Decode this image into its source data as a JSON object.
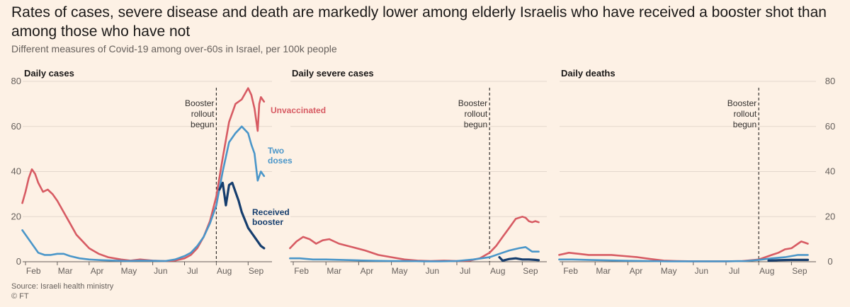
{
  "title": "Rates of cases, severe disease and death are markedly lower among elderly Israelis who have received a booster shot than among those who have not",
  "subtitle": "Different measures of Covid-19 among over-60s in Israel, per 100k people",
  "source": "Source: Israeli health ministry",
  "credit": "© FT",
  "colors": {
    "unvaccinated": "#d75b63",
    "two_doses": "#4a96c9",
    "booster": "#163e6e",
    "grid": "#e3d8cd",
    "text": "#33302e"
  },
  "annotation": [
    "Booster",
    "rollout",
    "begun"
  ],
  "chart_data": [
    {
      "type": "line",
      "title": "Daily cases",
      "ylim": [
        0,
        80
      ],
      "y_ticks": [
        "0",
        "20",
        "40",
        "60",
        "80"
      ],
      "x_ticks": [
        "Feb",
        "Mar",
        "Apr",
        "May",
        "Jun",
        "Jul",
        "Aug",
        "Sep"
      ],
      "xlim": [
        0,
        7.75
      ],
      "booster_start": 6.0,
      "grid": true,
      "series": [
        {
          "key": "unvaccinated",
          "name": "Unvaccinated",
          "x": [
            -0.1,
            0.0,
            0.1,
            0.2,
            0.3,
            0.4,
            0.55,
            0.7,
            0.85,
            1.0,
            1.2,
            1.4,
            1.6,
            1.8,
            2.0,
            2.3,
            2.6,
            3.0,
            3.3,
            3.6,
            4.0,
            4.4,
            4.7,
            5.0,
            5.2,
            5.4,
            5.6,
            5.8,
            6.0,
            6.2,
            6.4,
            6.6,
            6.8,
            7.0,
            7.1,
            7.2,
            7.3,
            7.35,
            7.4,
            7.5
          ],
          "y": [
            26,
            31,
            37,
            41,
            39,
            35,
            31,
            32,
            30,
            27,
            22,
            17,
            12,
            9,
            6,
            3.5,
            2,
            1,
            0.5,
            1,
            0.5,
            0.3,
            0.5,
            1.5,
            3,
            6,
            11,
            18,
            29,
            46,
            62,
            70,
            72,
            77,
            74,
            68,
            58,
            70,
            73,
            71
          ]
        },
        {
          "key": "two_doses",
          "name": "Two doses",
          "x": [
            -0.1,
            0.0,
            0.2,
            0.4,
            0.6,
            0.8,
            1.0,
            1.2,
            1.4,
            1.7,
            2.0,
            2.4,
            2.8,
            3.2,
            3.6,
            4.0,
            4.4,
            4.7,
            5.0,
            5.2,
            5.4,
            5.6,
            5.8,
            6.0,
            6.2,
            6.4,
            6.6,
            6.8,
            7.0,
            7.1,
            7.2,
            7.3,
            7.4,
            7.5
          ],
          "y": [
            14,
            12,
            8,
            4,
            3,
            3,
            3.5,
            3.5,
            2.5,
            1.5,
            1.0,
            0.7,
            0.5,
            0.3,
            0.5,
            0.4,
            0.3,
            1,
            2.5,
            4,
            7,
            11,
            17,
            25,
            40,
            53,
            57,
            60,
            57,
            52,
            48,
            36,
            40,
            38
          ]
        },
        {
          "key": "booster",
          "name": "Received booster",
          "x": [
            6.1,
            6.2,
            6.3,
            6.4,
            6.5,
            6.6,
            6.7,
            6.8,
            7.0,
            7.2,
            7.3,
            7.4,
            7.5
          ],
          "y": [
            32,
            35,
            25,
            34,
            35,
            31,
            27,
            22,
            15,
            11,
            9,
            7,
            6
          ]
        }
      ]
    },
    {
      "type": "line",
      "title": "Daily severe cases",
      "ylim": [
        0,
        80
      ],
      "y_ticks": [
        "0",
        "20",
        "40",
        "60",
        "80"
      ],
      "x_ticks": [
        "Feb",
        "Mar",
        "Apr",
        "May",
        "Jun",
        "Jul",
        "Aug",
        "Sep"
      ],
      "xlim": [
        0,
        7.75
      ],
      "booster_start": 6.0,
      "grid": true,
      "series": [
        {
          "key": "unvaccinated",
          "name": "Unvaccinated",
          "x": [
            -0.1,
            0.1,
            0.3,
            0.5,
            0.7,
            0.9,
            1.1,
            1.4,
            1.8,
            2.2,
            2.6,
            3.0,
            3.4,
            3.8,
            4.2,
            4.6,
            5.0,
            5.4,
            5.7,
            6.0,
            6.2,
            6.4,
            6.6,
            6.8,
            7.0,
            7.1,
            7.2,
            7.3,
            7.4,
            7.5
          ],
          "y": [
            6,
            9,
            11,
            10,
            8,
            9.5,
            10,
            8,
            6.5,
            5,
            3,
            2,
            1,
            0.5,
            0.3,
            0.5,
            0.3,
            0.5,
            1.5,
            4,
            7,
            11,
            15,
            19,
            20,
            19.5,
            18,
            17.5,
            18,
            17.5
          ]
        },
        {
          "key": "two_doses",
          "name": "Two doses",
          "x": [
            -0.1,
            0.2,
            0.6,
            1.0,
            1.5,
            2.0,
            2.5,
            3.0,
            3.5,
            4.0,
            4.5,
            5.0,
            5.5,
            6.0,
            6.3,
            6.6,
            6.9,
            7.1,
            7.3,
            7.5
          ],
          "y": [
            1.5,
            1.5,
            1,
            1,
            0.8,
            0.6,
            0.4,
            0.3,
            0.3,
            0.2,
            0.2,
            0.3,
            1,
            2,
            3.5,
            5,
            6,
            6.5,
            4.5,
            4.5
          ]
        },
        {
          "key": "booster",
          "name": "Received booster",
          "x": [
            6.3,
            6.4,
            6.6,
            6.8,
            7.0,
            7.2,
            7.4,
            7.5
          ],
          "y": [
            2,
            0.5,
            1.2,
            1.5,
            1.0,
            1.0,
            0.8,
            0.7
          ]
        }
      ]
    },
    {
      "type": "line",
      "title": "Daily deaths",
      "ylim": [
        0,
        80
      ],
      "y_ticks": [
        "0",
        "20",
        "40",
        "60",
        "80"
      ],
      "x_ticks": [
        "Feb",
        "Mar",
        "Apr",
        "May",
        "Jun",
        "Jul",
        "Aug",
        "Sep"
      ],
      "xlim": [
        0,
        7.75
      ],
      "booster_start": 6.0,
      "grid": true,
      "series": [
        {
          "key": "unvaccinated",
          "name": "Unvaccinated",
          "x": [
            -0.1,
            0.2,
            0.5,
            0.8,
            1.1,
            1.5,
            1.9,
            2.3,
            2.7,
            3.1,
            3.5,
            4.0,
            4.5,
            5.0,
            5.5,
            6.0,
            6.2,
            6.4,
            6.6,
            6.8,
            7.0,
            7.2,
            7.3,
            7.4,
            7.5
          ],
          "y": [
            3,
            4,
            3.5,
            3,
            3,
            3,
            2.5,
            2,
            1.2,
            0.5,
            0.3,
            0.2,
            0.2,
            0.2,
            0.3,
            1,
            2,
            3,
            4,
            5.5,
            6,
            8,
            9,
            8.5,
            8
          ]
        },
        {
          "key": "two_doses",
          "name": "Two doses",
          "x": [
            -0.1,
            0.3,
            0.8,
            1.4,
            2.0,
            2.6,
            3.2,
            4.0,
            5.0,
            5.6,
            6.0,
            6.4,
            6.8,
            7.2,
            7.5
          ],
          "y": [
            1,
            1,
            0.8,
            0.6,
            0.4,
            0.3,
            0.2,
            0.2,
            0.2,
            0.3,
            0.8,
            1.5,
            2,
            3,
            3
          ]
        },
        {
          "key": "booster",
          "name": "Received booster",
          "x": [
            6.3,
            6.6,
            7.0,
            7.4,
            7.5
          ],
          "y": [
            0.5,
            0.7,
            0.8,
            0.8,
            0.8
          ]
        }
      ]
    }
  ],
  "series_labels": {
    "unvaccinated": [
      "Unvaccinated"
    ],
    "two_doses": [
      "Two",
      "doses"
    ],
    "booster": [
      "Received",
      "booster"
    ]
  }
}
